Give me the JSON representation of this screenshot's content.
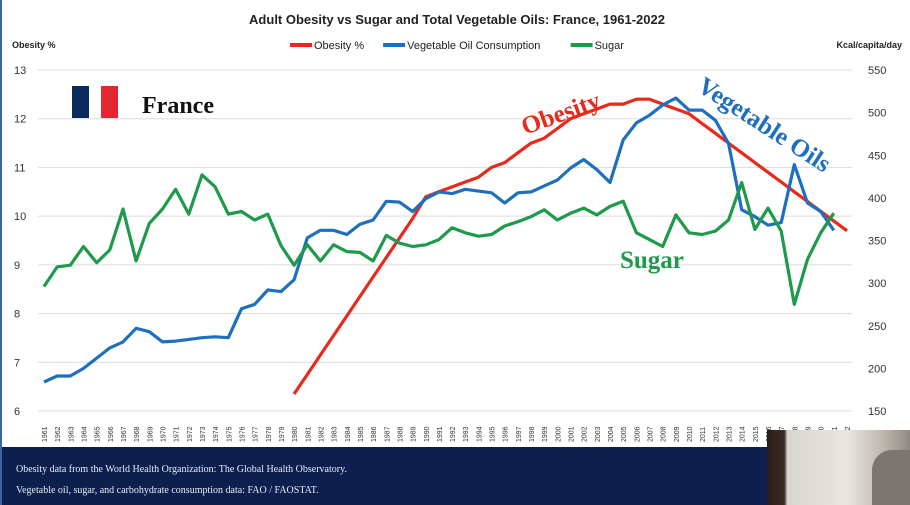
{
  "chart_data": {
    "type": "line",
    "title": "Adult Obesity vs Sugar and Total Vegetable Oils: France, 1961-2022",
    "ylabel_left": "Obesity %",
    "ylabel_right": "Kcal/capita/day",
    "ylim_left": [
      6,
      13
    ],
    "ylim_right": [
      150,
      550
    ],
    "yticks_left": [
      "6",
      "7",
      "8",
      "9",
      "10",
      "11",
      "12",
      "13"
    ],
    "yticks_right": [
      "150",
      "200",
      "250",
      "300",
      "350",
      "400",
      "450",
      "500",
      "550"
    ],
    "grid": true,
    "legend_position": "top-center",
    "x": [
      1961,
      1962,
      1963,
      1964,
      1965,
      1966,
      1967,
      1968,
      1969,
      1970,
      1971,
      1972,
      1973,
      1974,
      1975,
      1976,
      1977,
      1978,
      1979,
      1980,
      1981,
      1982,
      1983,
      1984,
      1985,
      1986,
      1987,
      1988,
      1989,
      1990,
      1991,
      1992,
      1993,
      1994,
      1995,
      1996,
      1997,
      1998,
      1999,
      2000,
      2001,
      2002,
      2003,
      2004,
      2005,
      2006,
      2007,
      2008,
      2009,
      2010,
      2011,
      2012,
      2013,
      2014,
      2015,
      2016,
      2017,
      2018,
      2019,
      2020,
      2021,
      2022
    ],
    "series": [
      {
        "name": "Obesity %",
        "axis": "left",
        "color": "#e8291c",
        "values": [
          null,
          null,
          null,
          null,
          null,
          null,
          null,
          null,
          null,
          null,
          null,
          null,
          null,
          null,
          null,
          null,
          null,
          null,
          null,
          6.35,
          6.75,
          7.15,
          7.55,
          7.95,
          8.35,
          8.75,
          9.15,
          9.55,
          9.95,
          10.4,
          10.5,
          10.6,
          10.7,
          10.8,
          11.0,
          11.1,
          11.3,
          11.5,
          11.6,
          11.8,
          12.0,
          12.1,
          12.2,
          12.3,
          12.3,
          12.4,
          12.4,
          12.3,
          12.2,
          12.1,
          11.9,
          11.7,
          11.5,
          11.3,
          11.1,
          10.9,
          10.7,
          10.5,
          10.3,
          10.1,
          9.9,
          9.7
        ]
      },
      {
        "name": "Vegetable Oil Consumption",
        "axis": "right",
        "color": "#1f6fbf",
        "values": [
          184,
          191,
          191,
          200,
          212,
          224,
          231,
          247,
          243,
          231,
          232,
          234,
          236,
          237,
          236,
          270,
          275,
          292,
          290,
          304,
          353,
          362,
          362,
          357,
          369,
          374,
          396,
          395,
          384,
          399,
          407,
          405,
          410,
          408,
          406,
          394,
          406,
          407,
          414,
          421,
          435,
          445,
          433,
          418,
          468,
          488,
          497,
          509,
          517,
          503,
          503,
          491,
          464,
          386,
          378,
          368,
          371,
          439,
          394,
          384,
          362,
          null
        ]
      },
      {
        "name": "Sugar",
        "axis": "right",
        "color": "#1e9a4a",
        "values": [
          296,
          319,
          321,
          343,
          324,
          339,
          387,
          326,
          370,
          387,
          410,
          381,
          427,
          413,
          381,
          384,
          374,
          381,
          344,
          321,
          345,
          326,
          345,
          337,
          336,
          326,
          356,
          347,
          343,
          345,
          351,
          365,
          359,
          355,
          357,
          367,
          372,
          378,
          386,
          374,
          382,
          388,
          380,
          390,
          396,
          359,
          351,
          343,
          380,
          359,
          357,
          361,
          374,
          418,
          363,
          388,
          361,
          275,
          328,
          359,
          382,
          null
        ]
      }
    ],
    "annotations": {
      "country": "France",
      "obesity": "Obesity",
      "veg_oils": "Vegetable Oils",
      "sugar": "Sugar"
    },
    "flag_colors": [
      "#0b2a5e",
      "#e3262f"
    ]
  },
  "footer": {
    "line1": "Obesity data from the World Health Organization: The Global Health Observatory.",
    "line2": "Vegetable oil, sugar, and carbohydrate consumption data: FAO / FAOSTAT."
  }
}
